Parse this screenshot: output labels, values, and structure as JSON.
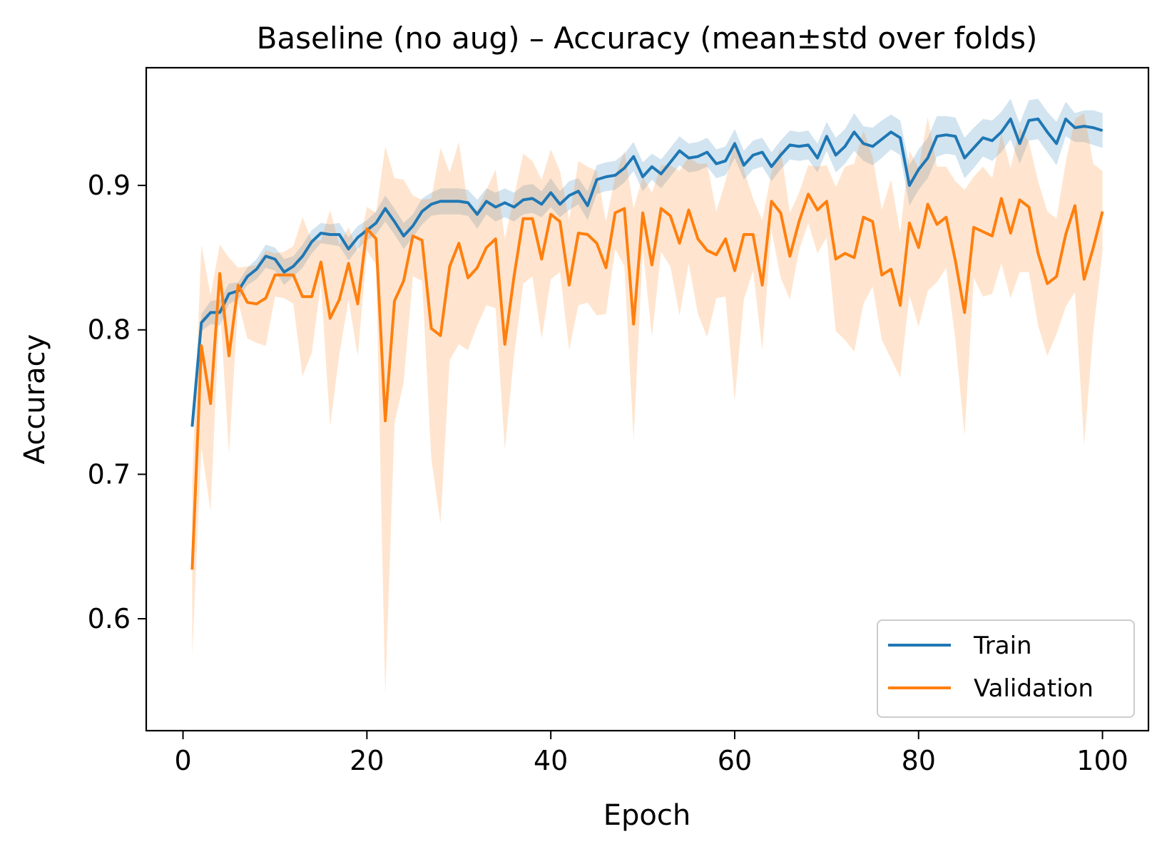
{
  "chart_data": {
    "type": "line",
    "title": "Baseline (no aug) – Accuracy (mean±std over folds)",
    "xlabel": "Epoch",
    "ylabel": "Accuracy",
    "xlim": [
      -4,
      105
    ],
    "ylim": [
      0.5225,
      0.9815
    ],
    "xticks": [
      0,
      20,
      40,
      60,
      80,
      100
    ],
    "yticks": [
      0.6,
      0.7,
      0.8,
      0.9
    ],
    "xtick_labels": [
      "0",
      "20",
      "40",
      "60",
      "80",
      "100"
    ],
    "ytick_labels": [
      "0.6",
      "0.7",
      "0.8",
      "0.9"
    ],
    "grid": false,
    "legend_position": "lower right",
    "x": [
      1,
      2,
      3,
      4,
      5,
      6,
      7,
      8,
      9,
      10,
      11,
      12,
      13,
      14,
      15,
      16,
      17,
      18,
      19,
      20,
      21,
      22,
      23,
      24,
      25,
      26,
      27,
      28,
      29,
      30,
      31,
      32,
      33,
      34,
      35,
      36,
      37,
      38,
      39,
      40,
      41,
      42,
      43,
      44,
      45,
      46,
      47,
      48,
      49,
      50,
      51,
      52,
      53,
      54,
      55,
      56,
      57,
      58,
      59,
      60,
      61,
      62,
      63,
      64,
      65,
      66,
      67,
      68,
      69,
      70,
      71,
      72,
      73,
      74,
      75,
      76,
      77,
      78,
      79,
      80,
      81,
      82,
      83,
      84,
      85,
      86,
      87,
      88,
      89,
      90,
      91,
      92,
      93,
      94,
      95,
      96,
      97,
      98,
      99,
      100
    ],
    "series": [
      {
        "name": "Train",
        "color": "#1f77b4",
        "band_color": "#1f77b4",
        "mean": [
          0.733,
          0.805,
          0.812,
          0.812,
          0.825,
          0.827,
          0.837,
          0.842,
          0.851,
          0.849,
          0.84,
          0.844,
          0.851,
          0.861,
          0.867,
          0.866,
          0.866,
          0.856,
          0.864,
          0.869,
          0.874,
          0.884,
          0.875,
          0.865,
          0.872,
          0.882,
          0.887,
          0.889,
          0.889,
          0.889,
          0.888,
          0.88,
          0.889,
          0.885,
          0.888,
          0.885,
          0.89,
          0.891,
          0.887,
          0.895,
          0.887,
          0.893,
          0.896,
          0.886,
          0.904,
          0.906,
          0.907,
          0.912,
          0.92,
          0.906,
          0.913,
          0.908,
          0.916,
          0.924,
          0.919,
          0.92,
          0.923,
          0.915,
          0.917,
          0.929,
          0.914,
          0.921,
          0.923,
          0.913,
          0.921,
          0.928,
          0.927,
          0.928,
          0.919,
          0.934,
          0.921,
          0.927,
          0.937,
          0.929,
          0.927,
          0.932,
          0.937,
          0.933,
          0.9,
          0.911,
          0.919,
          0.934,
          0.935,
          0.934,
          0.919,
          0.926,
          0.933,
          0.931,
          0.937,
          0.946,
          0.929,
          0.945,
          0.946,
          0.937,
          0.929,
          0.946,
          0.94,
          0.941,
          0.94,
          0.938
        ],
        "std": [
          0.002,
          0.006,
          0.008,
          0.009,
          0.007,
          0.006,
          0.006,
          0.007,
          0.008,
          0.008,
          0.009,
          0.007,
          0.008,
          0.008,
          0.007,
          0.007,
          0.008,
          0.008,
          0.008,
          0.007,
          0.008,
          0.009,
          0.009,
          0.009,
          0.008,
          0.009,
          0.008,
          0.009,
          0.009,
          0.009,
          0.009,
          0.01,
          0.009,
          0.01,
          0.01,
          0.01,
          0.01,
          0.01,
          0.009,
          0.01,
          0.009,
          0.01,
          0.009,
          0.01,
          0.01,
          0.01,
          0.01,
          0.01,
          0.01,
          0.01,
          0.009,
          0.01,
          0.01,
          0.01,
          0.01,
          0.01,
          0.01,
          0.01,
          0.01,
          0.01,
          0.01,
          0.01,
          0.01,
          0.01,
          0.01,
          0.01,
          0.01,
          0.01,
          0.01,
          0.01,
          0.012,
          0.012,
          0.013,
          0.012,
          0.013,
          0.013,
          0.012,
          0.012,
          0.014,
          0.014,
          0.014,
          0.014,
          0.013,
          0.013,
          0.014,
          0.014,
          0.013,
          0.014,
          0.014,
          0.014,
          0.014,
          0.014,
          0.014,
          0.014,
          0.015,
          0.012,
          0.01,
          0.011,
          0.012,
          0.012
        ]
      },
      {
        "name": "Validation",
        "color": "#ff7f0e",
        "band_color": "#ff7f0e",
        "mean": [
          0.634,
          0.789,
          0.749,
          0.839,
          0.782,
          0.831,
          0.819,
          0.818,
          0.822,
          0.838,
          0.838,
          0.838,
          0.823,
          0.823,
          0.847,
          0.808,
          0.821,
          0.846,
          0.818,
          0.87,
          0.863,
          0.737,
          0.82,
          0.834,
          0.865,
          0.862,
          0.801,
          0.796,
          0.844,
          0.86,
          0.836,
          0.843,
          0.857,
          0.863,
          0.79,
          0.837,
          0.877,
          0.877,
          0.849,
          0.88,
          0.875,
          0.831,
          0.867,
          0.866,
          0.86,
          0.843,
          0.881,
          0.884,
          0.804,
          0.881,
          0.845,
          0.884,
          0.879,
          0.86,
          0.883,
          0.863,
          0.855,
          0.852,
          0.863,
          0.841,
          0.866,
          0.866,
          0.831,
          0.889,
          0.881,
          0.851,
          0.875,
          0.894,
          0.883,
          0.889,
          0.849,
          0.853,
          0.85,
          0.878,
          0.875,
          0.838,
          0.842,
          0.817,
          0.874,
          0.857,
          0.887,
          0.873,
          0.878,
          0.848,
          0.812,
          0.871,
          0.868,
          0.865,
          0.891,
          0.867,
          0.89,
          0.885,
          0.853,
          0.832,
          0.837,
          0.866,
          0.886,
          0.835,
          0.857,
          0.882
        ],
        "std": [
          0.06,
          0.07,
          0.075,
          0.02,
          0.068,
          0.012,
          0.025,
          0.027,
          0.033,
          0.015,
          0.016,
          0.02,
          0.055,
          0.039,
          0.015,
          0.075,
          0.038,
          0.025,
          0.036,
          0.015,
          0.018,
          0.19,
          0.085,
          0.07,
          0.028,
          0.028,
          0.09,
          0.13,
          0.065,
          0.07,
          0.05,
          0.04,
          0.04,
          0.048,
          0.073,
          0.055,
          0.045,
          0.04,
          0.055,
          0.045,
          0.035,
          0.045,
          0.05,
          0.047,
          0.05,
          0.032,
          0.025,
          0.04,
          0.08,
          0.025,
          0.05,
          0.03,
          0.035,
          0.05,
          0.037,
          0.052,
          0.06,
          0.03,
          0.04,
          0.09,
          0.045,
          0.025,
          0.045,
          0.02,
          0.045,
          0.03,
          0.02,
          0.02,
          0.03,
          0.025,
          0.05,
          0.06,
          0.065,
          0.06,
          0.045,
          0.045,
          0.062,
          0.05,
          0.05,
          0.055,
          0.06,
          0.04,
          0.035,
          0.055,
          0.085,
          0.035,
          0.045,
          0.04,
          0.045,
          0.045,
          0.05,
          0.045,
          0.05,
          0.05,
          0.04,
          0.05,
          0.06,
          0.115,
          0.058,
          0.028
        ]
      }
    ]
  }
}
